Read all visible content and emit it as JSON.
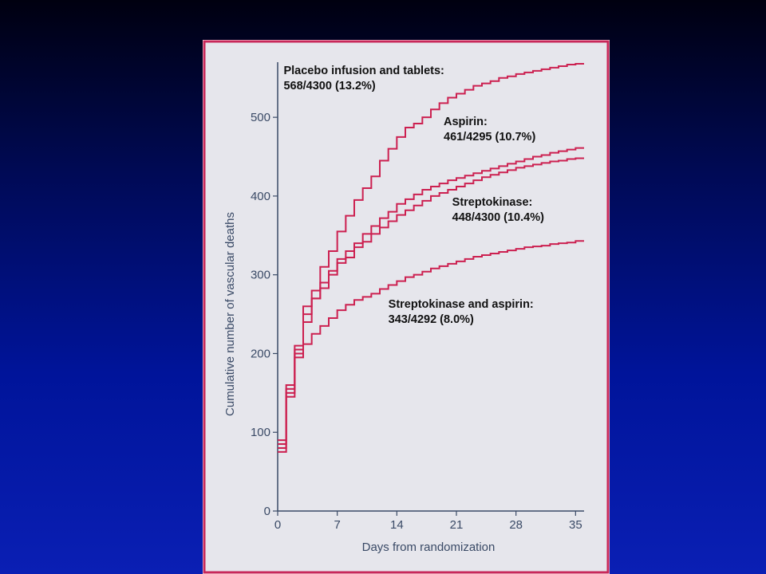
{
  "chart_data": {
    "type": "line",
    "step": true,
    "xlabel": "Days from randomization",
    "ylabel": "Cumulative number of vascular deaths",
    "xlim": [
      0,
      36
    ],
    "ylim": [
      0,
      570
    ],
    "xticks": [
      0,
      7,
      14,
      21,
      28,
      35
    ],
    "yticks": [
      0,
      100,
      200,
      300,
      400,
      500
    ],
    "grid": false,
    "colors": {
      "series": "#cc2050",
      "frame": "#c8285a",
      "plot_background": "#e8e8ee",
      "slide_background": "#0a1a9a"
    },
    "series": [
      {
        "name": "Placebo infusion and tablets",
        "x": [
          0,
          1,
          2,
          3,
          4,
          5,
          6,
          7,
          8,
          9,
          10,
          11,
          12,
          13,
          14,
          15,
          16,
          17,
          18,
          19,
          20,
          21,
          22,
          23,
          24,
          25,
          26,
          27,
          28,
          29,
          30,
          31,
          32,
          33,
          34,
          35,
          36
        ],
        "y": [
          90,
          160,
          210,
          260,
          280,
          310,
          330,
          355,
          375,
          395,
          410,
          425,
          445,
          460,
          475,
          487,
          492,
          500,
          510,
          518,
          525,
          530,
          535,
          540,
          543,
          546,
          550,
          552,
          555,
          557,
          559,
          561,
          563,
          565,
          567,
          568,
          568
        ]
      },
      {
        "name": "Aspirin",
        "x": [
          0,
          1,
          2,
          3,
          4,
          5,
          6,
          7,
          8,
          9,
          10,
          11,
          12,
          13,
          14,
          15,
          16,
          17,
          18,
          19,
          20,
          21,
          22,
          23,
          24,
          25,
          26,
          27,
          28,
          29,
          30,
          31,
          32,
          33,
          34,
          35,
          36
        ],
        "y": [
          85,
          150,
          200,
          240,
          270,
          290,
          305,
          320,
          330,
          340,
          352,
          362,
          372,
          380,
          390,
          396,
          402,
          408,
          412,
          416,
          420,
          423,
          426,
          429,
          432,
          435,
          438,
          441,
          444,
          447,
          450,
          452,
          455,
          457,
          459,
          461,
          461
        ]
      },
      {
        "name": "Streptokinase",
        "x": [
          0,
          1,
          2,
          3,
          4,
          5,
          6,
          7,
          8,
          9,
          10,
          11,
          12,
          13,
          14,
          15,
          16,
          17,
          18,
          19,
          20,
          21,
          22,
          23,
          24,
          25,
          26,
          27,
          28,
          29,
          30,
          31,
          32,
          33,
          34,
          35,
          36
        ],
        "y": [
          80,
          155,
          205,
          250,
          270,
          283,
          300,
          315,
          322,
          335,
          342,
          352,
          360,
          368,
          376,
          382,
          388,
          394,
          400,
          404,
          408,
          412,
          416,
          420,
          424,
          427,
          430,
          433,
          436,
          438,
          440,
          442,
          444,
          445,
          447,
          448,
          448
        ]
      },
      {
        "name": "Streptokinase and aspirin",
        "x": [
          0,
          1,
          2,
          3,
          4,
          5,
          6,
          7,
          8,
          9,
          10,
          11,
          12,
          13,
          14,
          15,
          16,
          17,
          18,
          19,
          20,
          21,
          22,
          23,
          24,
          25,
          26,
          27,
          28,
          29,
          30,
          31,
          32,
          33,
          34,
          35,
          36
        ],
        "y": [
          75,
          145,
          195,
          212,
          225,
          235,
          245,
          255,
          262,
          268,
          272,
          276,
          282,
          287,
          292,
          297,
          300,
          304,
          308,
          311,
          314,
          317,
          320,
          323,
          325,
          327,
          329,
          331,
          333,
          335,
          336,
          337,
          339,
          340,
          341,
          343,
          343
        ]
      }
    ],
    "annotations": [
      {
        "series": "Placebo infusion and tablets",
        "line1": "Placebo infusion and tablets:",
        "line2": "568/4300 (13.2%)",
        "x": 0.7,
        "y": 555
      },
      {
        "series": "Aspirin",
        "line1": "Aspirin:",
        "line2": "461/4295 (10.7%)",
        "x": 19.5,
        "y": 490
      },
      {
        "series": "Streptokinase",
        "line1": "Streptokinase:",
        "line2": "448/4300 (10.4%)",
        "x": 20.5,
        "y": 388
      },
      {
        "series": "Streptokinase and aspirin",
        "line1": "Streptokinase and aspirin:",
        "line2": "343/4292 (8.0%)",
        "x": 13,
        "y": 258
      }
    ]
  }
}
